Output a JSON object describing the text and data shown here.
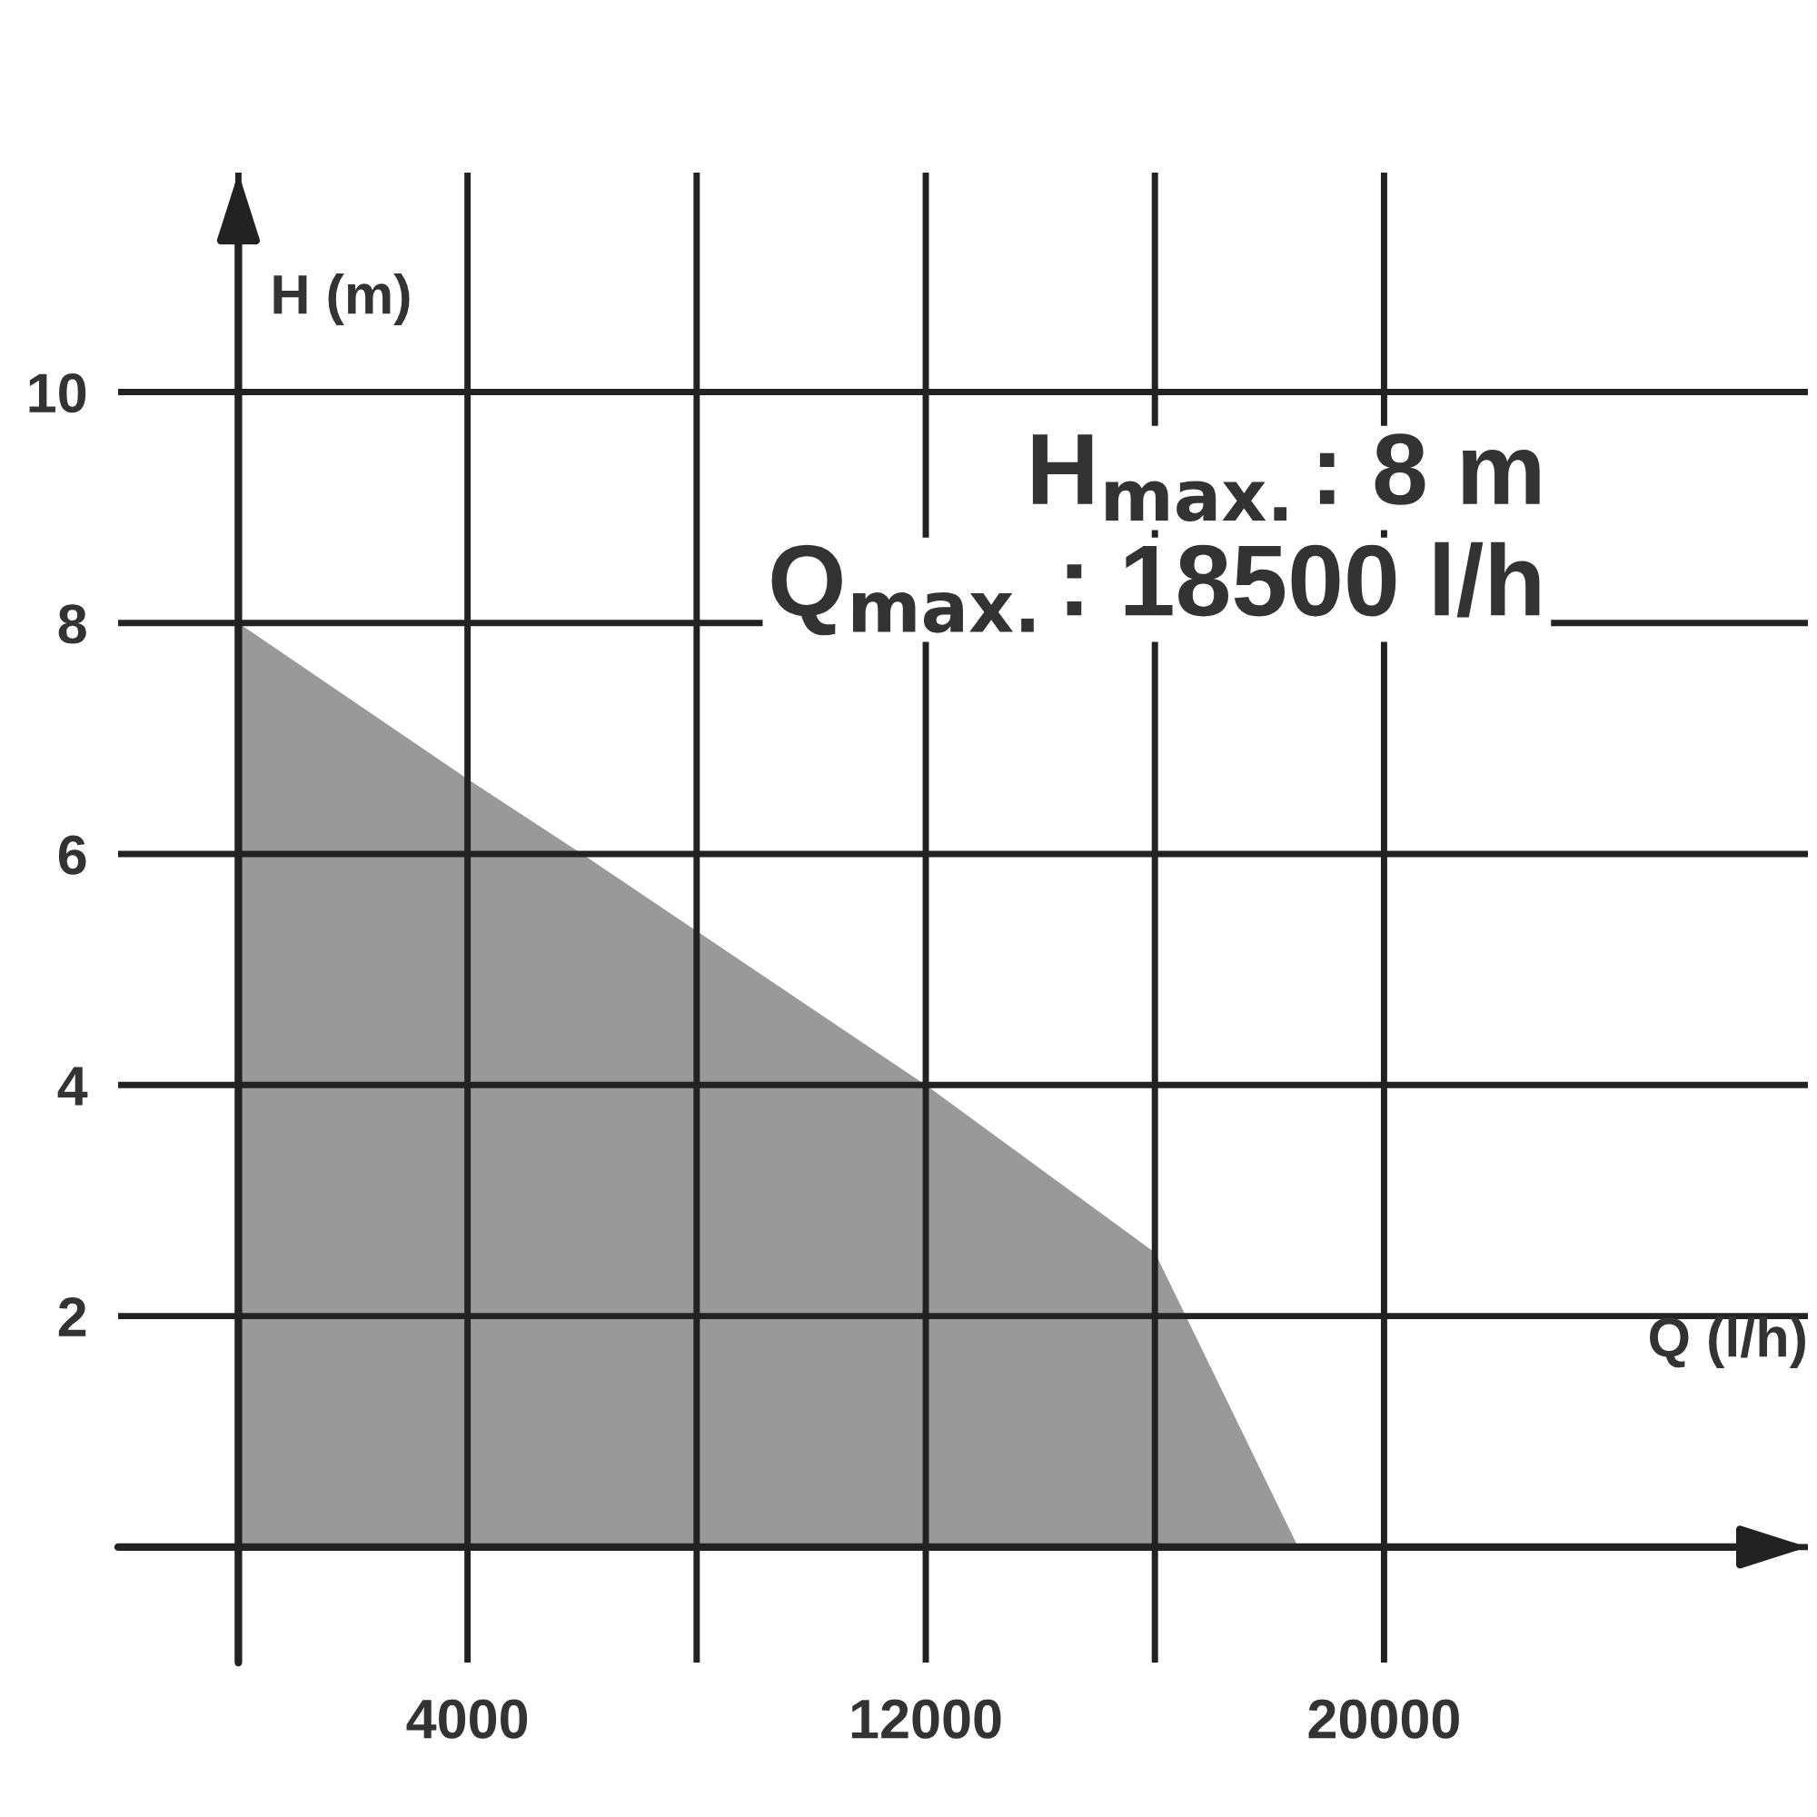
{
  "chart_data": {
    "type": "area",
    "x": [
      0,
      4000,
      6000,
      9000,
      12000,
      16000,
      18500
    ],
    "values": [
      8,
      6.65,
      6,
      5,
      4,
      2.55,
      0
    ],
    "color": "#999999",
    "xlabel": "Q (l/h)",
    "ylabel": "H (m)",
    "xlim": [
      -2100,
      27400
    ],
    "ylim": [
      -1,
      11.9
    ],
    "xticks": [
      {
        "value": 0,
        "label": null
      },
      4000,
      {
        "value": 8000,
        "label": null
      },
      12000,
      {
        "value": 16000,
        "label": null
      },
      20000
    ],
    "yticks": [
      {
        "value": 0,
        "label": null
      },
      2,
      4,
      6,
      8,
      10
    ],
    "grid": true,
    "annotations": [
      "H$_{max.}$: 8 m",
      "Q$_{max.}$: 18500 l/h"
    ]
  }
}
